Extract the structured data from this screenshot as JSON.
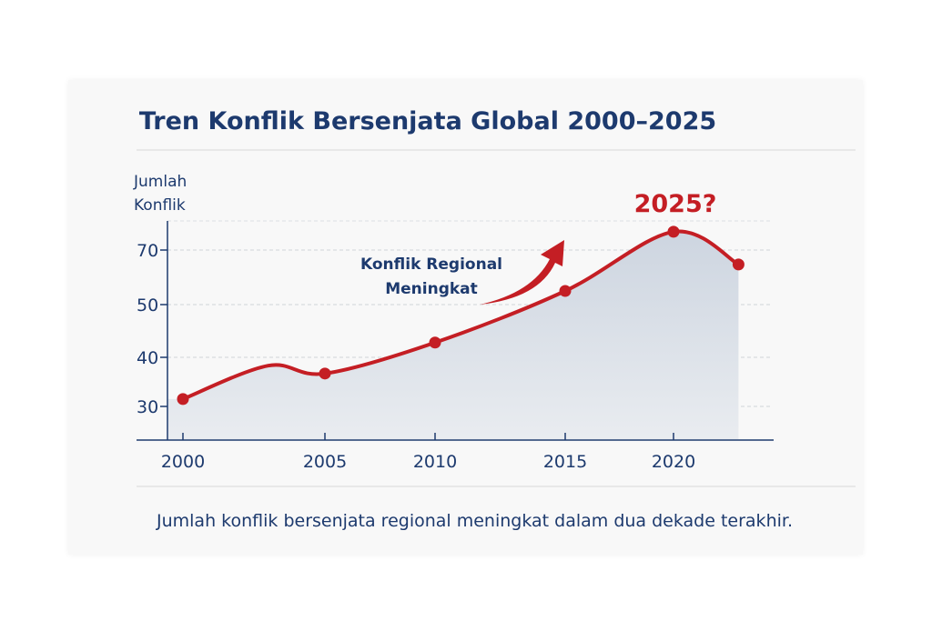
{
  "chart_data": {
    "type": "area",
    "title": "Tren Konflik Bersenjata Global 2000–2025",
    "ylabel": "Jumlah Konflik",
    "xlabel": "",
    "x_ticks": [
      "2000",
      "2005",
      "2010",
      "2015",
      "2020"
    ],
    "y_ticks": [
      "30",
      "40",
      "50",
      "70"
    ],
    "grid": "horizontal dashed",
    "series": [
      {
        "points": [
          {
            "x": 2000,
            "y": 31.5,
            "marker": true
          },
          {
            "x": 2003,
            "y": 38.3,
            "marker": false
          },
          {
            "x": 2005,
            "y": 36.7,
            "marker": true
          },
          {
            "x": 2010,
            "y": 42.8,
            "marker": true
          },
          {
            "x": 2015,
            "y": 55,
            "marker": true
          },
          {
            "x": 2020,
            "y": 76.7,
            "marker": true
          },
          {
            "x": 2023,
            "y": 64.7,
            "marker": true
          }
        ]
      }
    ],
    "annotations": {
      "trend": [
        "Konflik Regional",
        "Meningkat"
      ],
      "peak": "2025?"
    },
    "caption": "Jumlah konflik bersenjata regional meningkat dalam dua dekade terakhir.",
    "colors": {
      "line": "#c41e24",
      "fill": "#d6dde6",
      "text": "#1d3a6e",
      "axis": "#1d3a6e"
    }
  }
}
